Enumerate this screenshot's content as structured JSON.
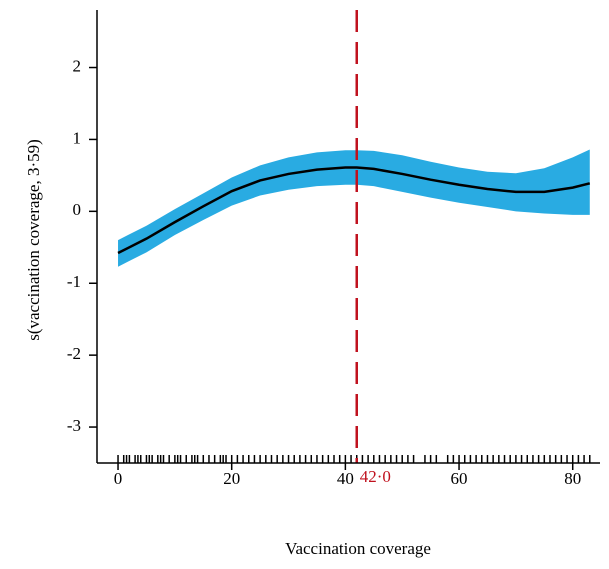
{
  "chart_data": {
    "type": "smooth",
    "xlabel": "Vaccination coverage",
    "ylabel": "s(vaccination coverage, 3·59)",
    "xlim": [
      -3.7,
      84.8
    ],
    "ylim": [
      -3.5,
      2.8
    ],
    "xticks": [
      0,
      20,
      40,
      60,
      80
    ],
    "yticks": [
      2,
      1,
      0,
      -1,
      -2,
      -3
    ],
    "x": [
      0,
      5,
      10,
      15,
      20,
      25,
      30,
      35,
      40,
      42,
      45,
      50,
      55,
      60,
      65,
      70,
      75,
      80,
      83
    ],
    "fit": [
      -0.58,
      -0.38,
      -0.15,
      0.07,
      0.28,
      0.43,
      0.52,
      0.58,
      0.61,
      0.61,
      0.59,
      0.52,
      0.44,
      0.37,
      0.31,
      0.27,
      0.27,
      0.33,
      0.39
    ],
    "ci_upper": [
      -0.4,
      -0.2,
      0.03,
      0.25,
      0.47,
      0.64,
      0.75,
      0.82,
      0.85,
      0.85,
      0.84,
      0.78,
      0.69,
      0.61,
      0.55,
      0.53,
      0.6,
      0.75,
      0.86
    ],
    "ci_lower": [
      -0.77,
      -0.57,
      -0.33,
      -0.12,
      0.08,
      0.22,
      0.3,
      0.35,
      0.37,
      0.37,
      0.35,
      0.27,
      0.19,
      0.12,
      0.06,
      0.0,
      -0.03,
      -0.05,
      -0.05
    ],
    "fit_color": "#000000",
    "band_color": "#29abe2",
    "rug": [
      0,
      1,
      1.5,
      2,
      3,
      3.5,
      4,
      5,
      5.5,
      6,
      7,
      7.5,
      8,
      9,
      10,
      10.5,
      11,
      12,
      13,
      13.5,
      14,
      15,
      16,
      17,
      18,
      18.5,
      19,
      20,
      21,
      22,
      23,
      24,
      25,
      26,
      27,
      28,
      29,
      30,
      31,
      32,
      33,
      34,
      35,
      36,
      37,
      38,
      39,
      40,
      41,
      42,
      43,
      44,
      45,
      46,
      47,
      48,
      49,
      50,
      51,
      52,
      54,
      55,
      56,
      58,
      59,
      60,
      61,
      62,
      63,
      64,
      65,
      66,
      67,
      68,
      69,
      70,
      71,
      72,
      73,
      74,
      75,
      76,
      77,
      78,
      79,
      80,
      81,
      82,
      83
    ],
    "vline": {
      "value": 42.0,
      "label": "42·0",
      "color": "#c0111e"
    }
  }
}
